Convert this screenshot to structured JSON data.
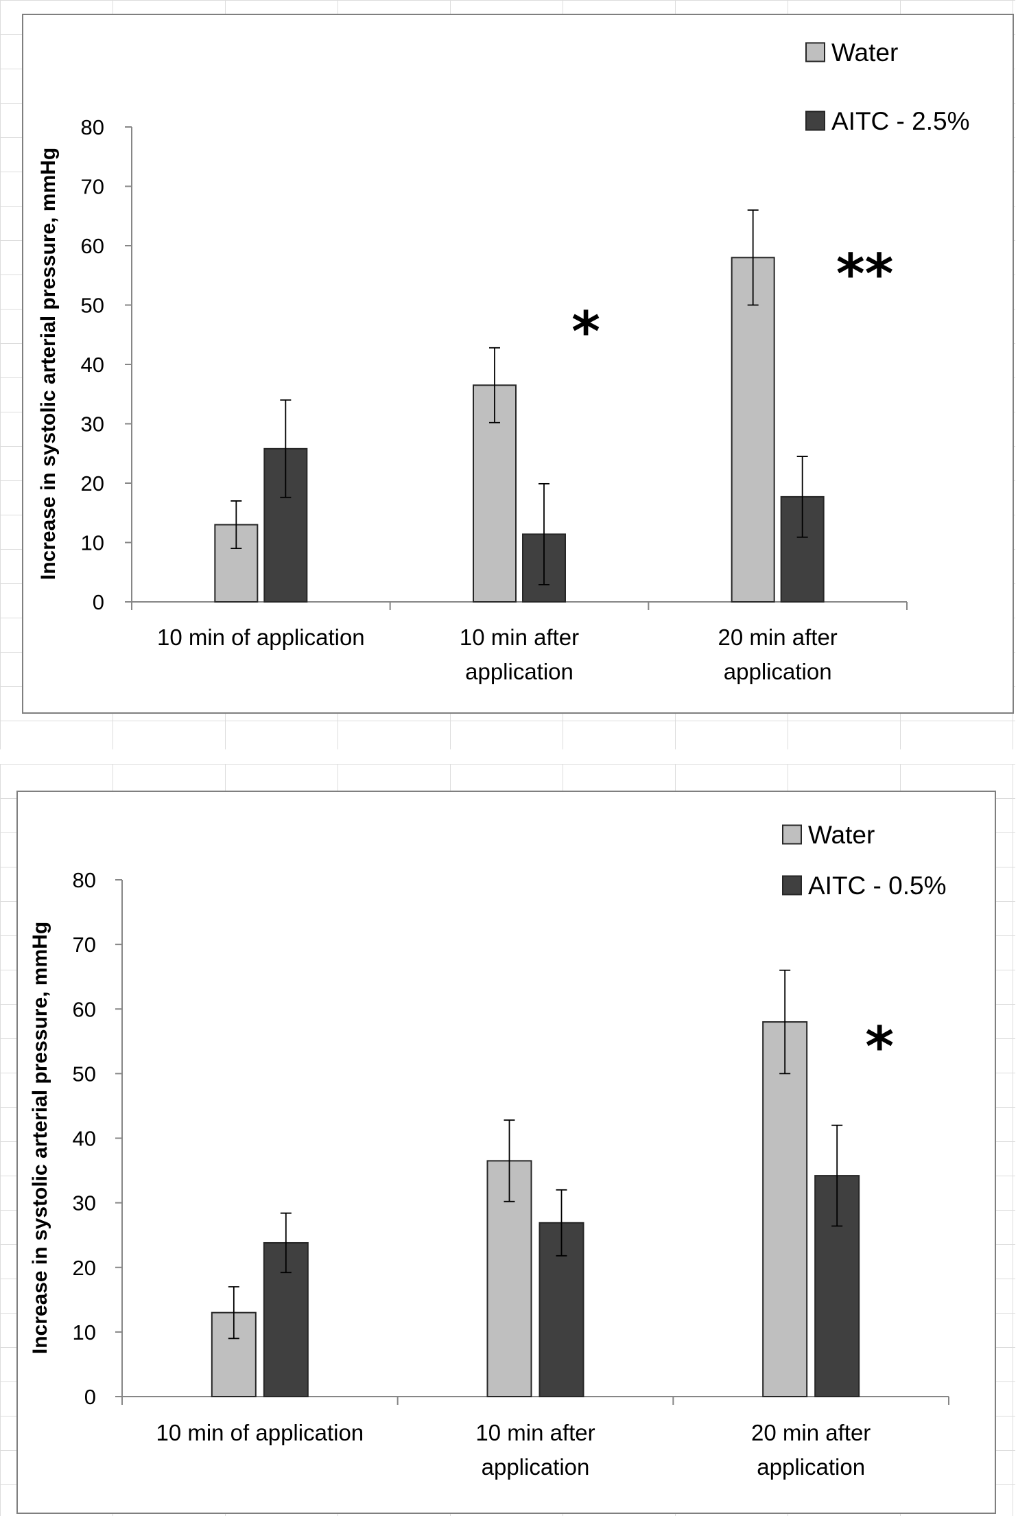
{
  "chart_data": [
    {
      "type": "bar",
      "categories": [
        "10 min of application",
        "10 min after application",
        "20 min after application"
      ],
      "category_lines": [
        [
          "10 min of application"
        ],
        [
          "10 min after",
          "application"
        ],
        [
          "20 min after",
          "application"
        ]
      ],
      "series": [
        {
          "name": "Water",
          "values": [
            13,
            36.5,
            58
          ],
          "errors": [
            4,
            6.3,
            8
          ],
          "color": "#bfbfbf"
        },
        {
          "name": "AITC - 2.5%",
          "values": [
            25.8,
            11.4,
            17.7
          ],
          "errors": [
            8.2,
            8.5,
            6.8
          ],
          "color": "#404040"
        }
      ],
      "ylabel": "Increase in  systolic arterial pressure, mmHg",
      "xlabel": "",
      "ylim": [
        0,
        80
      ],
      "yticks": [
        0,
        10,
        20,
        30,
        40,
        50,
        60,
        70,
        80
      ],
      "annotations": [
        {
          "text": "*",
          "category": 1
        },
        {
          "text": "**",
          "category": 2
        }
      ],
      "legend_position": "top-right",
      "grid": false
    },
    {
      "type": "bar",
      "categories": [
        "10 min of application",
        "10 min after application",
        "20 min after application"
      ],
      "category_lines": [
        [
          "10 min of application"
        ],
        [
          "10 min after",
          "application"
        ],
        [
          "20 min after",
          "application"
        ]
      ],
      "series": [
        {
          "name": "Water",
          "values": [
            13,
            36.5,
            58
          ],
          "errors": [
            4,
            6.3,
            8
          ],
          "color": "#bfbfbf"
        },
        {
          "name": "AITC - 0.5%",
          "values": [
            23.8,
            26.9,
            34.2
          ],
          "errors": [
            4.6,
            5.1,
            7.8
          ],
          "color": "#404040"
        }
      ],
      "ylabel": "Increase in  systolic arterial pressure, mmHg",
      "xlabel": "",
      "ylim": [
        0,
        80
      ],
      "yticks": [
        0,
        10,
        20,
        30,
        40,
        50,
        60,
        70,
        80
      ],
      "annotations": [
        {
          "text": "*",
          "category": 2
        }
      ],
      "legend_position": "top-right",
      "grid": false
    }
  ]
}
